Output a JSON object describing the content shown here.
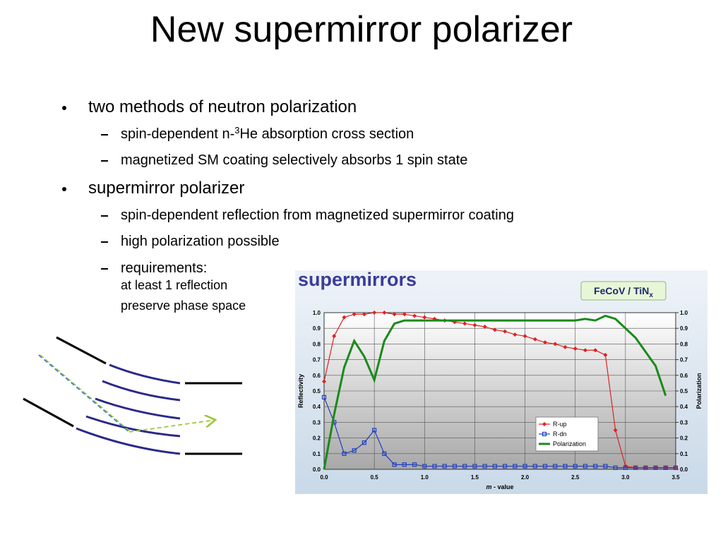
{
  "title": "New supermirror polarizer",
  "bullets": [
    {
      "text": "two methods of neutron polarization",
      "items": [
        {
          "text": "spin-dependent n-",
          "sup": "3",
          "rest": "He absorption cross section"
        },
        {
          "text": "magnetized SM coating selectively absorbs 1 spin state"
        }
      ]
    },
    {
      "text": "supermirror polarizer",
      "items": [
        {
          "text": "spin-dependent reflection from magnetized supermirror coating"
        },
        {
          "text": "high polarization possible"
        },
        {
          "text": "requirements:",
          "lines": [
            "at least 1 reflection",
            "preserve phase space"
          ]
        }
      ]
    }
  ],
  "chart_data": {
    "type": "line",
    "title": "supermirrors",
    "annotation": "FeCoV / TiN",
    "annotation_sub": "x",
    "x_label_var": "m",
    "x_label": "- value",
    "y_label": "Reflectivity",
    "y2_label": "Polarization",
    "x": [
      0,
      0.1,
      0.2,
      0.3,
      0.4,
      0.5,
      0.6,
      0.7,
      0.8,
      0.9,
      1.0,
      1.1,
      1.2,
      1.3,
      1.4,
      1.5,
      1.6,
      1.7,
      1.8,
      1.9,
      2.0,
      2.1,
      2.2,
      2.3,
      2.4,
      2.5,
      2.6,
      2.7,
      2.8,
      2.9,
      3.0,
      3.1,
      3.2,
      3.3,
      3.4,
      3.5
    ],
    "series": [
      {
        "name": "R-up",
        "color": "#e02020",
        "marker": "diamond",
        "values": [
          0.56,
          0.85,
          0.97,
          0.99,
          0.99,
          1.0,
          1.0,
          0.99,
          0.99,
          0.98,
          0.97,
          0.96,
          0.95,
          0.94,
          0.93,
          0.92,
          0.91,
          0.89,
          0.88,
          0.86,
          0.85,
          0.83,
          0.81,
          0.8,
          0.78,
          0.77,
          0.76,
          0.76,
          0.73,
          0.25,
          0.02,
          0.01,
          0.01,
          0.01,
          0.01,
          0.01
        ]
      },
      {
        "name": "R-dn",
        "color": "#2040c0",
        "marker": "square",
        "values": [
          0.46,
          0.3,
          0.1,
          0.12,
          0.17,
          0.25,
          0.1,
          0.03,
          0.03,
          0.03,
          0.02,
          0.02,
          0.02,
          0.02,
          0.02,
          0.02,
          0.02,
          0.02,
          0.02,
          0.02,
          0.02,
          0.02,
          0.02,
          0.02,
          0.02,
          0.02,
          0.02,
          0.02,
          0.02,
          0.01,
          0.01,
          0.01,
          0.01,
          0.01,
          0.01,
          0.01
        ]
      },
      {
        "name": "Polarization",
        "color": "#1a8a1a",
        "marker": "none",
        "axis": "y2",
        "values": [
          0.0,
          0.35,
          0.65,
          0.82,
          0.72,
          0.57,
          0.82,
          0.93,
          0.95,
          0.95,
          0.95,
          0.95,
          0.95,
          0.95,
          0.95,
          0.95,
          0.95,
          0.95,
          0.95,
          0.95,
          0.95,
          0.95,
          0.95,
          0.95,
          0.95,
          0.95,
          0.96,
          0.95,
          0.98,
          0.96,
          0.9,
          0.84,
          0.75,
          0.66,
          0.47,
          null
        ]
      }
    ],
    "xlim": [
      0,
      3.5
    ],
    "xticks": [
      {
        "value": 0,
        "label": "0.0"
      },
      0.5,
      {
        "value": 1,
        "label": "1.0"
      },
      1.5,
      {
        "value": 2,
        "label": "2.0"
      },
      2.5,
      {
        "value": 3,
        "label": "3.0"
      },
      3.5
    ],
    "ylim": [
      0,
      1
    ],
    "yticks": [
      {
        "value": 0,
        "label": "0.0"
      },
      0.1,
      0.2,
      0.3,
      0.4,
      0.5,
      0.6,
      0.7,
      0.8,
      0.9,
      {
        "value": 1,
        "label": "1.0"
      }
    ],
    "y2lim": [
      0,
      1
    ],
    "y2ticks": [
      {
        "value": 0,
        "label": "0.0"
      },
      0.1,
      0.2,
      0.3,
      0.4,
      0.5,
      0.6,
      0.7,
      0.8,
      0.9,
      {
        "value": 1,
        "label": "1.0"
      }
    ],
    "grid": true,
    "legend": "lower right"
  }
}
